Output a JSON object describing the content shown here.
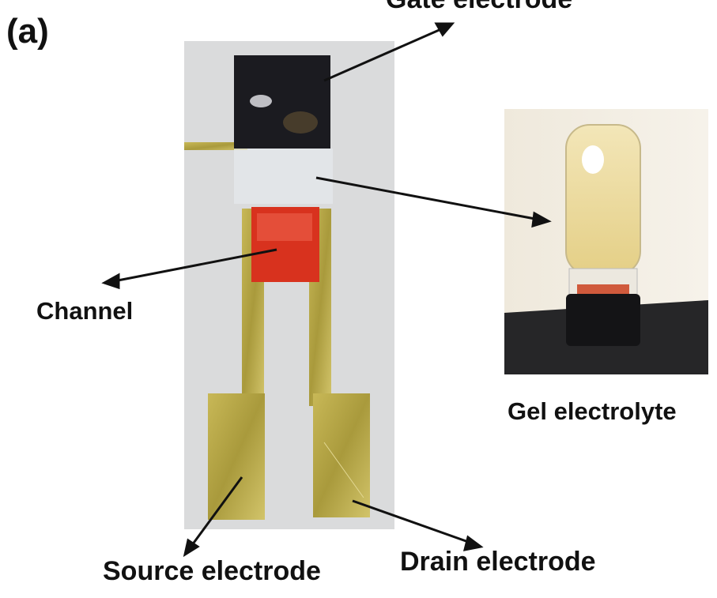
{
  "figure": {
    "panel_label": "(a)",
    "labels": {
      "gate": "Gate electrode",
      "channel": "Channel",
      "gel": "Gel electrolyte",
      "source": "Source electrode",
      "drain": "Drain electrode"
    },
    "colors": {
      "gold": "#b8a84a",
      "gold_dark": "#8a7a2a",
      "gate": "#1a1a1e",
      "channel": "#d8321e",
      "substrate": "#d9dadb",
      "gel": "#ead9a0",
      "arrow": "#111111"
    }
  }
}
